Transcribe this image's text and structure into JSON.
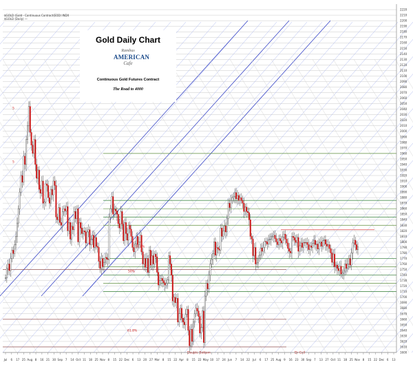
{
  "header": {
    "symbol_line": "$GOLD (Gold - Continuous Contract(EOD) INDX",
    "legend_line": "$GOLD (Daily) —"
  },
  "chart_data": {
    "type": "candlestick",
    "title": "Gold Daily Chart",
    "subtitle": "Continuous Gold Futures Contract",
    "tagline": "The Road to 4000",
    "logo": {
      "top": "Rambus",
      "middle": "AMERICAN",
      "bottom": "Cafe"
    },
    "ylim": [
      1600,
      2230
    ],
    "y_ticks": [
      1600,
      1610,
      1620,
      1630,
      1640,
      1650,
      1660,
      1670,
      1680,
      1690,
      1700,
      1710,
      1720,
      1730,
      1740,
      1750,
      1760,
      1770,
      1780,
      1790,
      1800,
      1810,
      1820,
      1830,
      1840,
      1850,
      1860,
      1870,
      1880,
      1890,
      1900,
      1910,
      1920,
      1930,
      1940,
      1950,
      1960,
      1970,
      1980,
      1990,
      2000,
      2010,
      2020,
      2030,
      2040,
      2050,
      2060,
      2070,
      2080,
      2090,
      2100,
      2110,
      2120,
      2130,
      2140,
      2150,
      2160,
      2170,
      2180,
      2190,
      2200,
      2210,
      2220
    ],
    "x_ticks": [
      "Jul",
      "6",
      "17",
      "25",
      "Aug",
      "8",
      "16",
      "21",
      "30",
      "Sep",
      "7",
      "14",
      "Oct",
      "11",
      "18",
      "25",
      "Nov",
      "8",
      "15",
      "22",
      "Dec",
      "6",
      "13",
      "20",
      "27",
      "Mar",
      "8",
      "15",
      "22",
      "Apr",
      "8",
      "15",
      "22",
      "May",
      "10",
      "17",
      "24",
      "Jun",
      "7",
      "14",
      "22",
      "Jul",
      "6",
      "17",
      "25",
      "Aug",
      "9",
      "16",
      "23",
      "30",
      "Sep",
      "7",
      "13",
      "27",
      "Oct",
      "11",
      "18",
      "25",
      "Nov",
      "8",
      "15",
      "22",
      "Dec",
      "6",
      "13"
    ],
    "annotations": [
      "38.2%",
      "50%",
      "61.8%",
      "Double Bottom",
      "Dr Cell",
      "5",
      "5"
    ],
    "grid": true,
    "closes": [
      1735,
      1752,
      1760,
      1748,
      1770,
      1785,
      1779,
      1795,
      1810,
      1834,
      1860,
      1890,
      1920,
      1908,
      1955,
      1940,
      1985,
      2010,
      2045,
      1998,
      1975,
      1960,
      1985,
      1940,
      1915,
      1930,
      1895,
      1888,
      1910,
      1870,
      1872,
      1905,
      1902,
      1880,
      1870,
      1895,
      1885,
      1910,
      1902,
      1845,
      1840,
      1862,
      1835,
      1830,
      1855,
      1860,
      1856,
      1864,
      1820,
      1835,
      1805,
      1828,
      1822,
      1855,
      1842,
      1860,
      1800,
      1835,
      1825,
      1815,
      1820,
      1818,
      1798,
      1818,
      1822,
      1795,
      1805,
      1812,
      1790,
      1808,
      1792,
      1790,
      1765,
      1752,
      1770,
      1755,
      1763,
      1772,
      1769,
      1768,
      1845,
      1860,
      1882,
      1850,
      1859,
      1856,
      1850,
      1833,
      1825,
      1855,
      1832,
      1802,
      1835,
      1815,
      1803,
      1830,
      1823,
      1810,
      1790,
      1782,
      1796,
      1810,
      1795,
      1800,
      1812,
      1782,
      1760,
      1770,
      1754,
      1770,
      1745,
      1785,
      1758,
      1775,
      1760,
      1778,
      1773,
      1745,
      1722,
      1730,
      1734,
      1730,
      1726,
      1722,
      1725,
      1731,
      1775,
      1760,
      1740,
      1693,
      1700,
      1690,
      1698,
      1655,
      1670,
      1680,
      1662,
      1655,
      1650,
      1669,
      1678,
      1640,
      1612,
      1642,
      1620,
      1655,
      1670,
      1680,
      1675,
      1665,
      1635,
      1645,
      1675,
      1618,
      1702,
      1725,
      1715,
      1740,
      1760,
      1768,
      1779,
      1800,
      1776,
      1790,
      1787,
      1785,
      1825,
      1810,
      1820,
      1829,
      1818,
      1842,
      1870,
      1862,
      1875,
      1880,
      1882,
      1889,
      1878,
      1884,
      1875,
      1880,
      1875,
      1870,
      1855,
      1863,
      1855,
      1853,
      1840,
      1810,
      1805,
      1775,
      1790,
      1760,
      1762,
      1770,
      1776,
      1789,
      1783,
      1790,
      1801,
      1800,
      1796,
      1804,
      1805,
      1810,
      1810,
      1812,
      1806,
      1800,
      1795,
      1806,
      1802,
      1798,
      1809,
      1814,
      1805,
      1798,
      1788,
      1783,
      1780,
      1810,
      1808,
      1803,
      1799,
      1808,
      1783,
      1793,
      1798,
      1790,
      1799,
      1798,
      1799,
      1795,
      1786,
      1793,
      1790,
      1797,
      1803,
      1795,
      1796,
      1787,
      1798,
      1800,
      1792,
      1802,
      1804,
      1796,
      1792,
      1795,
      1788,
      1780,
      1763,
      1778,
      1755,
      1758,
      1752,
      1748,
      1756,
      1742,
      1744,
      1747,
      1760,
      1752,
      1760,
      1770,
      1758,
      1780,
      1798,
      1803,
      1795,
      1786,
      1791
    ]
  }
}
